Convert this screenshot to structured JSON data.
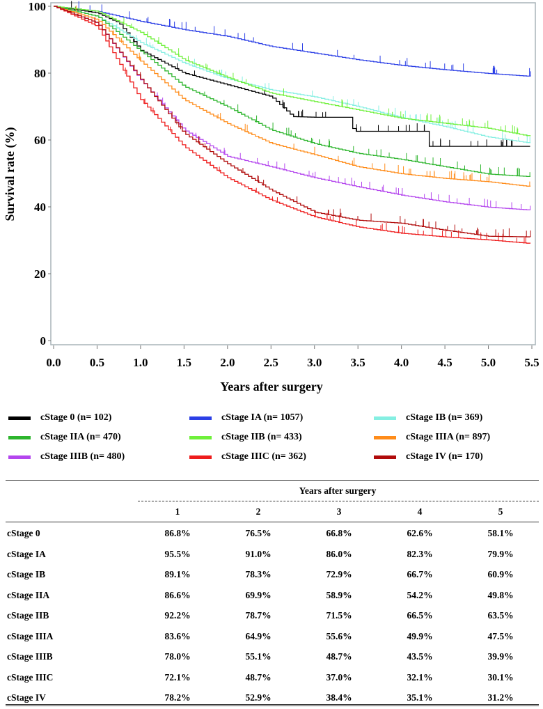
{
  "chart_data": {
    "type": "line",
    "subtype": "kaplan-meier",
    "xlabel": "Years after surgery",
    "ylabel": "Survival rate (%)",
    "xlim": [
      0,
      5.5
    ],
    "ylim": [
      0,
      100
    ],
    "xticks": [
      "0.0",
      "0.5",
      "1.0",
      "1.5",
      "2.0",
      "2.5",
      "3.0",
      "3.5",
      "4.0",
      "4.5",
      "5.0",
      "5.5"
    ],
    "yticks": [
      "0",
      "20",
      "40",
      "60",
      "80",
      "100"
    ],
    "legend_position": "bottom",
    "series": [
      {
        "name": "cStage 0 (n= 102)",
        "color": "#000000",
        "x": [
          0,
          0.5,
          0.75,
          1,
          1.5,
          2,
          2.5,
          2.75,
          3,
          3.4,
          3.45,
          4,
          4.3,
          4.32,
          5.5
        ],
        "y": [
          100,
          98,
          95,
          86.8,
          80,
          76.5,
          73,
          67,
          66.8,
          66.8,
          62.6,
          62.6,
          62.6,
          58.1,
          58.1
        ]
      },
      {
        "name": "cStage IA (n= 1057)",
        "color": "#2b3fe6",
        "x": [
          0,
          0.5,
          1,
          1.5,
          2,
          2.5,
          3,
          3.5,
          4,
          4.5,
          5,
          5.5
        ],
        "y": [
          100,
          98.5,
          95.5,
          93,
          91,
          88,
          86,
          84,
          82.3,
          81,
          79.9,
          79
        ]
      },
      {
        "name": "cStage IB (n= 369)",
        "color": "#85efe2",
        "x": [
          0,
          0.5,
          1,
          1.5,
          2,
          2.5,
          3,
          3.5,
          4,
          4.5,
          5,
          5.5
        ],
        "y": [
          100,
          97,
          89.1,
          83,
          78.3,
          75,
          72.9,
          70,
          66.7,
          64,
          60.9,
          59
        ]
      },
      {
        "name": "cStage IIA (n= 470)",
        "color": "#2db52d",
        "x": [
          0,
          0.5,
          1,
          1.5,
          2,
          2.5,
          3,
          3.5,
          4,
          4.5,
          5,
          5.5
        ],
        "y": [
          100,
          97,
          86.6,
          76,
          69.9,
          63,
          58.9,
          56,
          54.2,
          52,
          49.8,
          49
        ]
      },
      {
        "name": "cStage IIB (n= 433)",
        "color": "#6ef03a",
        "x": [
          0,
          0.5,
          1,
          1.5,
          2,
          2.5,
          3,
          3.5,
          4,
          4.5,
          5,
          5.5
        ],
        "y": [
          100,
          98.5,
          92.2,
          84,
          78.7,
          74,
          71.5,
          69,
          66.5,
          65,
          63.5,
          61
        ]
      },
      {
        "name": "cStage IIIA (n= 897)",
        "color": "#ff8c1a",
        "x": [
          0,
          0.5,
          1,
          1.5,
          2,
          2.5,
          3,
          3.5,
          4,
          4.5,
          5,
          5.5
        ],
        "y": [
          100,
          96,
          83.6,
          72,
          64.9,
          59,
          55.6,
          52,
          49.9,
          48.5,
          47.5,
          46
        ]
      },
      {
        "name": "cStage IIIB (n= 480)",
        "color": "#b446ee",
        "x": [
          0,
          0.5,
          1,
          1.5,
          2,
          2.5,
          3,
          3.5,
          4,
          4.5,
          5,
          5.5
        ],
        "y": [
          100,
          95,
          78,
          63,
          55.1,
          52,
          48.7,
          46,
          43.5,
          41.5,
          39.9,
          39
        ]
      },
      {
        "name": "cStage IIIC (n= 362)",
        "color": "#ee1c1c",
        "x": [
          0,
          0.5,
          1,
          1.5,
          2,
          2.5,
          3,
          3.5,
          4,
          4.5,
          5,
          5.5
        ],
        "y": [
          100,
          94,
          72.1,
          58,
          48.7,
          42,
          37,
          34,
          32.1,
          31,
          30.1,
          29
        ]
      },
      {
        "name": "cStage IV (n= 170)",
        "color": "#b00b0b",
        "x": [
          0,
          0.5,
          1,
          1.5,
          2,
          2.5,
          3,
          3.5,
          4,
          4.5,
          5,
          5.5
        ],
        "y": [
          100,
          95,
          78.2,
          62,
          52.9,
          45,
          38.4,
          36,
          35.1,
          33,
          31.2,
          31
        ]
      }
    ]
  },
  "table": {
    "header": "Years after surgery",
    "columns": [
      "1",
      "2",
      "3",
      "4",
      "5"
    ],
    "rows": [
      {
        "label": "cStage 0",
        "values": [
          "86.8%",
          "76.5%",
          "66.8%",
          "62.6%",
          "58.1%"
        ]
      },
      {
        "label": "cStage IA",
        "values": [
          "95.5%",
          "91.0%",
          "86.0%",
          "82.3%",
          "79.9%"
        ]
      },
      {
        "label": "cStage IB",
        "values": [
          "89.1%",
          "78.3%",
          "72.9%",
          "66.7%",
          "60.9%"
        ]
      },
      {
        "label": "cStage IIA",
        "values": [
          "86.6%",
          "69.9%",
          "58.9%",
          "54.2%",
          "49.8%"
        ]
      },
      {
        "label": "cStage IIB",
        "values": [
          "92.2%",
          "78.7%",
          "71.5%",
          "66.5%",
          "63.5%"
        ]
      },
      {
        "label": "cStage IIIA",
        "values": [
          "83.6%",
          "64.9%",
          "55.6%",
          "49.9%",
          "47.5%"
        ]
      },
      {
        "label": "cStage IIIB",
        "values": [
          "78.0%",
          "55.1%",
          "48.7%",
          "43.5%",
          "39.9%"
        ]
      },
      {
        "label": "cStage IIIC",
        "values": [
          "72.1%",
          "48.7%",
          "37.0%",
          "32.1%",
          "30.1%"
        ]
      },
      {
        "label": "cStage IV",
        "values": [
          "78.2%",
          "52.9%",
          "38.4%",
          "35.1%",
          "31.2%"
        ]
      }
    ]
  }
}
